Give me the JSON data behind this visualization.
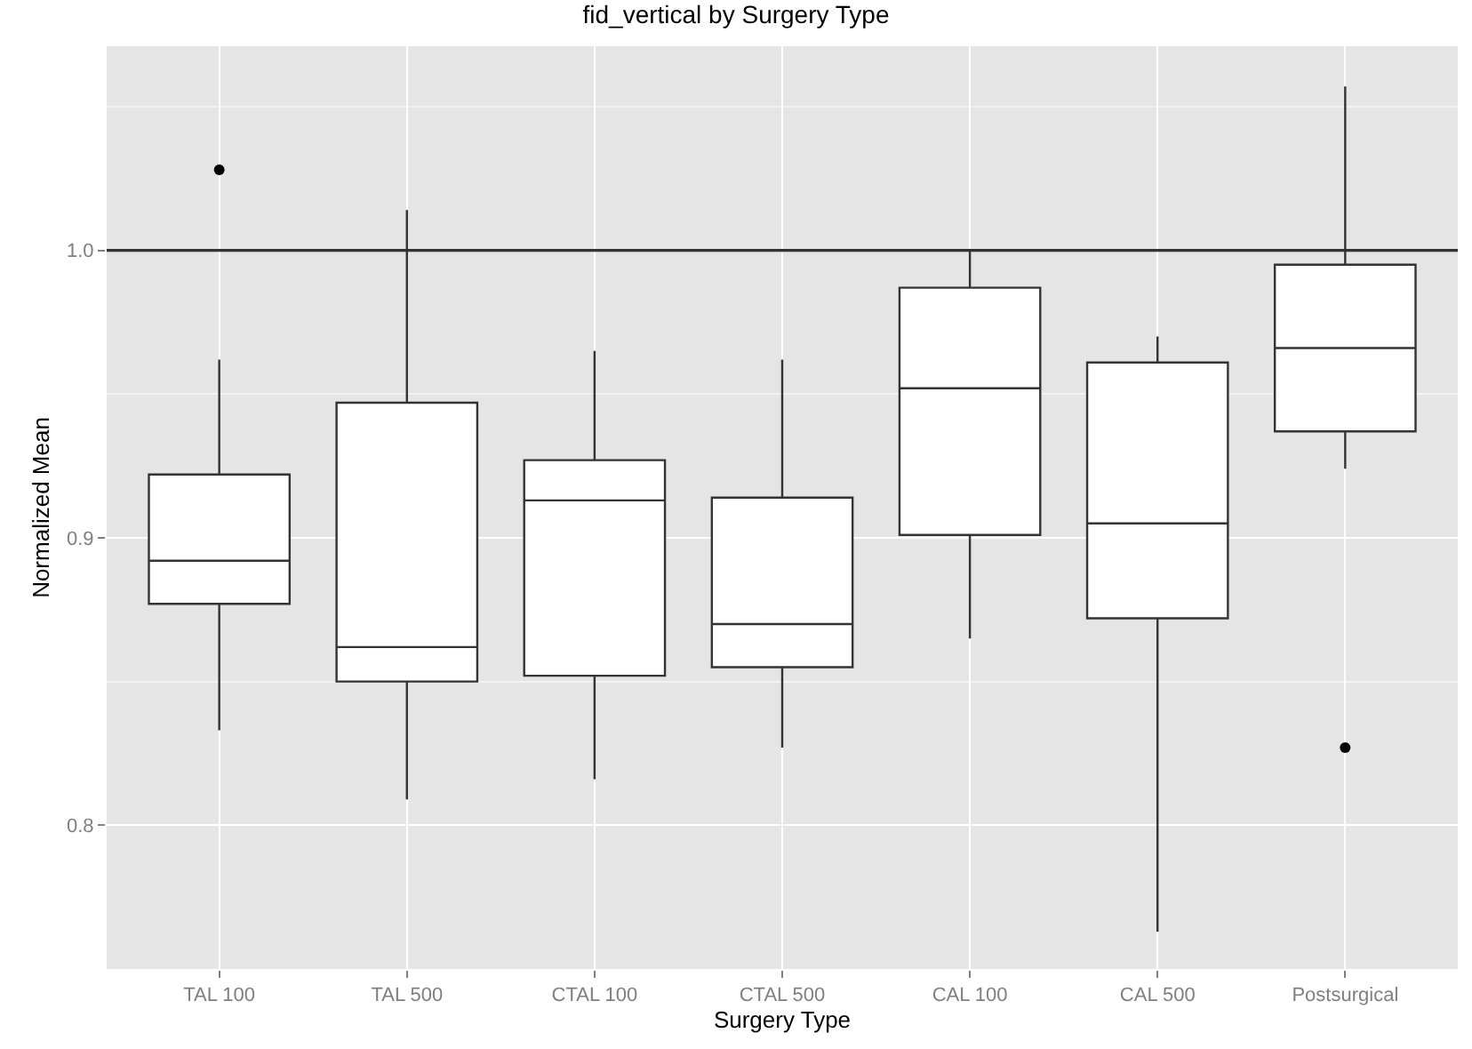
{
  "chart_data": {
    "type": "box",
    "title": "fid_vertical by Surgery Type",
    "xlabel": "Surgery Type",
    "ylabel": "Normalized Mean",
    "categories": [
      "TAL 100",
      "TAL 500",
      "CTAL 100",
      "CTAL 500",
      "CAL 100",
      "CAL 500",
      "Postsurgical"
    ],
    "boxes": [
      {
        "low": 0.833,
        "q1": 0.877,
        "median": 0.892,
        "q3": 0.922,
        "high": 0.962,
        "outliers": [
          1.028
        ]
      },
      {
        "low": 0.809,
        "q1": 0.85,
        "median": 0.862,
        "q3": 0.947,
        "high": 1.014
      },
      {
        "low": 0.816,
        "q1": 0.852,
        "median": 0.913,
        "q3": 0.927,
        "high": 0.965
      },
      {
        "low": 0.827,
        "q1": 0.855,
        "median": 0.87,
        "q3": 0.914,
        "high": 0.962
      },
      {
        "low": 0.865,
        "q1": 0.901,
        "median": 0.952,
        "q3": 0.987,
        "high": 1.0
      },
      {
        "low": 0.763,
        "q1": 0.872,
        "median": 0.905,
        "q3": 0.961,
        "high": 0.97
      },
      {
        "low": 0.924,
        "q1": 0.937,
        "median": 0.966,
        "q3": 0.995,
        "high": 1.057,
        "outliers": [
          0.827
        ]
      }
    ],
    "color": "#333333",
    "ylim": [
      0.75,
      1.071
    ],
    "yticks": [
      0.8,
      0.9,
      {
        "value": 1.0,
        "label": "1.0"
      }
    ],
    "ref_lines": [
      {
        "axis": "y",
        "value": 1.0,
        "color": "#333333"
      }
    ],
    "grid": true
  }
}
